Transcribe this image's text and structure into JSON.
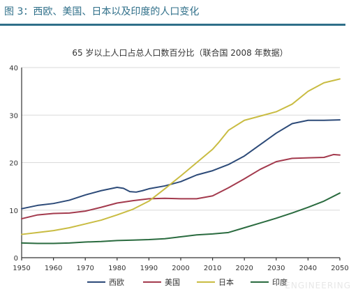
{
  "figure": {
    "caption": "图 3：西欧、美国、日本以及印度的人口变化",
    "accent_color": "#2f6f89"
  },
  "watermark": "ENGINEERING",
  "chart_data": {
    "type": "line",
    "title": "65 岁以上人口占总人口数百分比（联合国 2008 年数据）",
    "xlabel": "",
    "ylabel": "",
    "xlim": [
      1950,
      2050
    ],
    "ylim": [
      0,
      40
    ],
    "x_ticks": [
      "1950",
      "1960",
      "1970",
      "1980",
      "1990",
      "2000",
      "2010",
      "2020",
      "2030",
      "2040",
      "2050"
    ],
    "y_ticks": [
      "0",
      "10",
      "20",
      "30",
      "40"
    ],
    "grid": "horizontal",
    "legend_position": "bottom",
    "series": [
      {
        "name": "西欧",
        "color": "#2c4a78",
        "points": [
          [
            1950,
            10.3
          ],
          [
            1955,
            11
          ],
          [
            1960,
            11.4
          ],
          [
            1965,
            12.1
          ],
          [
            1970,
            13.2
          ],
          [
            1975,
            14.1
          ],
          [
            1980,
            14.8
          ],
          [
            1982,
            14.6
          ],
          [
            1984,
            13.9
          ],
          [
            1986,
            13.8
          ],
          [
            1988,
            14.1
          ],
          [
            1990,
            14.5
          ],
          [
            1995,
            15.1
          ],
          [
            2000,
            16
          ],
          [
            2005,
            17.4
          ],
          [
            2010,
            18.3
          ],
          [
            2015,
            19.6
          ],
          [
            2020,
            21.4
          ],
          [
            2025,
            23.8
          ],
          [
            2030,
            26.2
          ],
          [
            2035,
            28.2
          ],
          [
            2040,
            28.9
          ],
          [
            2045,
            28.9
          ],
          [
            2050,
            29
          ]
        ]
      },
      {
        "name": "美国",
        "color": "#a33a4d",
        "points": [
          [
            1950,
            8.2
          ],
          [
            1955,
            9
          ],
          [
            1960,
            9.3
          ],
          [
            1965,
            9.4
          ],
          [
            1970,
            9.8
          ],
          [
            1975,
            10.6
          ],
          [
            1980,
            11.5
          ],
          [
            1985,
            12
          ],
          [
            1990,
            12.4
          ],
          [
            1995,
            12.5
          ],
          [
            2000,
            12.4
          ],
          [
            2005,
            12.4
          ],
          [
            2010,
            13
          ],
          [
            2015,
            14.7
          ],
          [
            2020,
            16.6
          ],
          [
            2025,
            18.6
          ],
          [
            2030,
            20.2
          ],
          [
            2035,
            20.9
          ],
          [
            2040,
            21
          ],
          [
            2045,
            21.1
          ],
          [
            2048,
            21.7
          ],
          [
            2050,
            21.6
          ]
        ]
      },
      {
        "name": "日本",
        "color": "#c9bc42",
        "points": [
          [
            1950,
            4.9
          ],
          [
            1955,
            5.3
          ],
          [
            1960,
            5.7
          ],
          [
            1965,
            6.3
          ],
          [
            1970,
            7.1
          ],
          [
            1975,
            7.9
          ],
          [
            1980,
            9
          ],
          [
            1985,
            10.2
          ],
          [
            1990,
            11.9
          ],
          [
            1995,
            14.5
          ],
          [
            2000,
            17.2
          ],
          [
            2005,
            20
          ],
          [
            2010,
            22.8
          ],
          [
            2012,
            24.3
          ],
          [
            2015,
            26.8
          ],
          [
            2020,
            28.9
          ],
          [
            2025,
            29.8
          ],
          [
            2030,
            30.7
          ],
          [
            2035,
            32.3
          ],
          [
            2040,
            35
          ],
          [
            2045,
            36.8
          ],
          [
            2050,
            37.6
          ]
        ]
      },
      {
        "name": "印度",
        "color": "#2a6b3f",
        "points": [
          [
            1950,
            3.1
          ],
          [
            1955,
            3
          ],
          [
            1960,
            3
          ],
          [
            1965,
            3.1
          ],
          [
            1970,
            3.3
          ],
          [
            1975,
            3.4
          ],
          [
            1980,
            3.6
          ],
          [
            1985,
            3.7
          ],
          [
            1990,
            3.8
          ],
          [
            1995,
            4
          ],
          [
            2000,
            4.4
          ],
          [
            2005,
            4.8
          ],
          [
            2010,
            5
          ],
          [
            2015,
            5.3
          ],
          [
            2020,
            6.3
          ],
          [
            2025,
            7.3
          ],
          [
            2030,
            8.3
          ],
          [
            2035,
            9.4
          ],
          [
            2040,
            10.6
          ],
          [
            2045,
            11.9
          ],
          [
            2050,
            13.6
          ]
        ]
      }
    ]
  }
}
